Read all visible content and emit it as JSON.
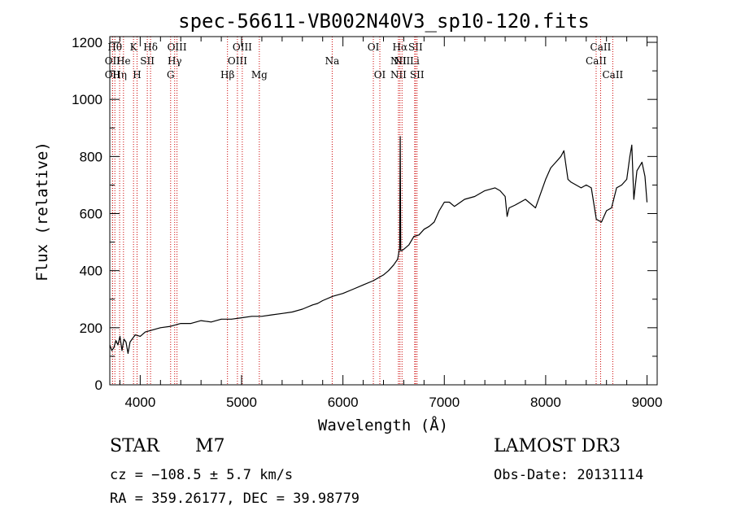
{
  "chart_data": {
    "type": "line",
    "title": "spec-56611-VB002N40V3_sp10-120.fits",
    "xlabel": "Wavelength (Å)",
    "ylabel": "Flux (relative)",
    "xlim": [
      3700,
      9100
    ],
    "ylim": [
      0,
      1220
    ],
    "x_ticks": [
      4000,
      5000,
      6000,
      7000,
      8000,
      9000
    ],
    "x_tick_labels": [
      "4000",
      "5000",
      "6000",
      "7000",
      "8000",
      "9000"
    ],
    "y_ticks": [
      0,
      200,
      400,
      600,
      800,
      1000,
      1200
    ],
    "y_tick_labels": [
      "0",
      "200",
      "400",
      "600",
      "800",
      "1000",
      "1200"
    ],
    "grid": false,
    "line_color": "#000000",
    "marker_color": "#cc0000",
    "series": [
      {
        "name": "flux",
        "x": [
          3700,
          3720,
          3740,
          3760,
          3780,
          3800,
          3820,
          3840,
          3860,
          3880,
          3900,
          3950,
          4000,
          4050,
          4100,
          4150,
          4200,
          4300,
          4400,
          4500,
          4600,
          4700,
          4800,
          4900,
          5000,
          5100,
          5200,
          5300,
          5400,
          5500,
          5600,
          5700,
          5750,
          5800,
          5900,
          6000,
          6100,
          6200,
          6300,
          6400,
          6450,
          6500,
          6540,
          6560,
          6565,
          6570,
          6580,
          6600,
          6650,
          6700,
          6750,
          6800,
          6850,
          6900,
          6950,
          7000,
          7050,
          7100,
          7200,
          7300,
          7400,
          7500,
          7550,
          7600,
          7620,
          7640,
          7700,
          7800,
          7900,
          8000,
          8050,
          8100,
          8150,
          8180,
          8200,
          8220,
          8250,
          8300,
          8350,
          8400,
          8450,
          8500,
          8550,
          8600,
          8650,
          8700,
          8750,
          8800,
          8830,
          8850,
          8870,
          8900,
          8950,
          8980,
          9000
        ],
        "y": [
          140,
          120,
          130,
          155,
          140,
          170,
          120,
          160,
          150,
          110,
          150,
          175,
          170,
          185,
          190,
          195,
          200,
          205,
          215,
          215,
          225,
          220,
          230,
          230,
          235,
          240,
          240,
          245,
          250,
          255,
          265,
          280,
          285,
          295,
          310,
          320,
          335,
          350,
          365,
          385,
          400,
          420,
          440,
          480,
          870,
          470,
          470,
          475,
          490,
          520,
          525,
          545,
          555,
          570,
          610,
          640,
          640,
          625,
          650,
          660,
          680,
          690,
          680,
          660,
          590,
          620,
          630,
          650,
          620,
          720,
          760,
          780,
          800,
          820,
          770,
          720,
          710,
          700,
          690,
          700,
          690,
          580,
          570,
          610,
          620,
          690,
          700,
          720,
          800,
          840,
          650,
          750,
          780,
          730,
          640
        ]
      }
    ],
    "line_markers": [
      {
        "wavelength": 3750,
        "label": "Hθ",
        "tier": 1
      },
      {
        "wavelength": 3727,
        "label": "OII",
        "tier": 2
      },
      {
        "wavelength": 3727,
        "label": "OII",
        "tier": 3
      },
      {
        "wavelength": 3797,
        "label": "Hη",
        "tier": 3
      },
      {
        "wavelength": 3835,
        "label": "He",
        "tier": 2
      },
      {
        "wavelength": 3934,
        "label": "K",
        "tier": 1
      },
      {
        "wavelength": 3969,
        "label": "H",
        "tier": 3
      },
      {
        "wavelength": 4070,
        "label": "SII",
        "tier": 2
      },
      {
        "wavelength": 4102,
        "label": "Hδ",
        "tier": 1
      },
      {
        "wavelength": 4300,
        "label": "G",
        "tier": 3
      },
      {
        "wavelength": 4340,
        "label": "Hγ",
        "tier": 2
      },
      {
        "wavelength": 4363,
        "label": "OIII",
        "tier": 1
      },
      {
        "wavelength": 4861,
        "label": "Hβ",
        "tier": 3
      },
      {
        "wavelength": 4959,
        "label": "OIII",
        "tier": 2
      },
      {
        "wavelength": 5007,
        "label": "OIII",
        "tier": 1
      },
      {
        "wavelength": 5175,
        "label": "Mg",
        "tier": 3
      },
      {
        "wavelength": 5894,
        "label": "Na",
        "tier": 2
      },
      {
        "wavelength": 6300,
        "label": "OI",
        "tier": 1
      },
      {
        "wavelength": 6364,
        "label": "OI",
        "tier": 3
      },
      {
        "wavelength": 6548,
        "label": "NII",
        "tier": 2
      },
      {
        "wavelength": 6548,
        "label": "NII",
        "tier": 3
      },
      {
        "wavelength": 6563,
        "label": "Hα",
        "tier": 1
      },
      {
        "wavelength": 6583,
        "label": "NII",
        "tier": 2
      },
      {
        "wavelength": 6708,
        "label": "Li",
        "tier": 2
      },
      {
        "wavelength": 6716,
        "label": "SII",
        "tier": 1
      },
      {
        "wavelength": 6731,
        "label": "SII",
        "tier": 3
      },
      {
        "wavelength": 8498,
        "label": "CaII",
        "tier": 2
      },
      {
        "wavelength": 8542,
        "label": "CaII",
        "tier": 1
      },
      {
        "wavelength": 8662,
        "label": "CaII",
        "tier": 3
      }
    ]
  },
  "info": {
    "object_class": "STAR",
    "subclass": "M7",
    "redshift_text": "cz = −108.5 ± 5.7 km/s",
    "coords_text": "RA = 359.26177, DEC =  39.98779",
    "survey": "LAMOST DR3",
    "obs_date": "Obs-Date: 20131114"
  }
}
